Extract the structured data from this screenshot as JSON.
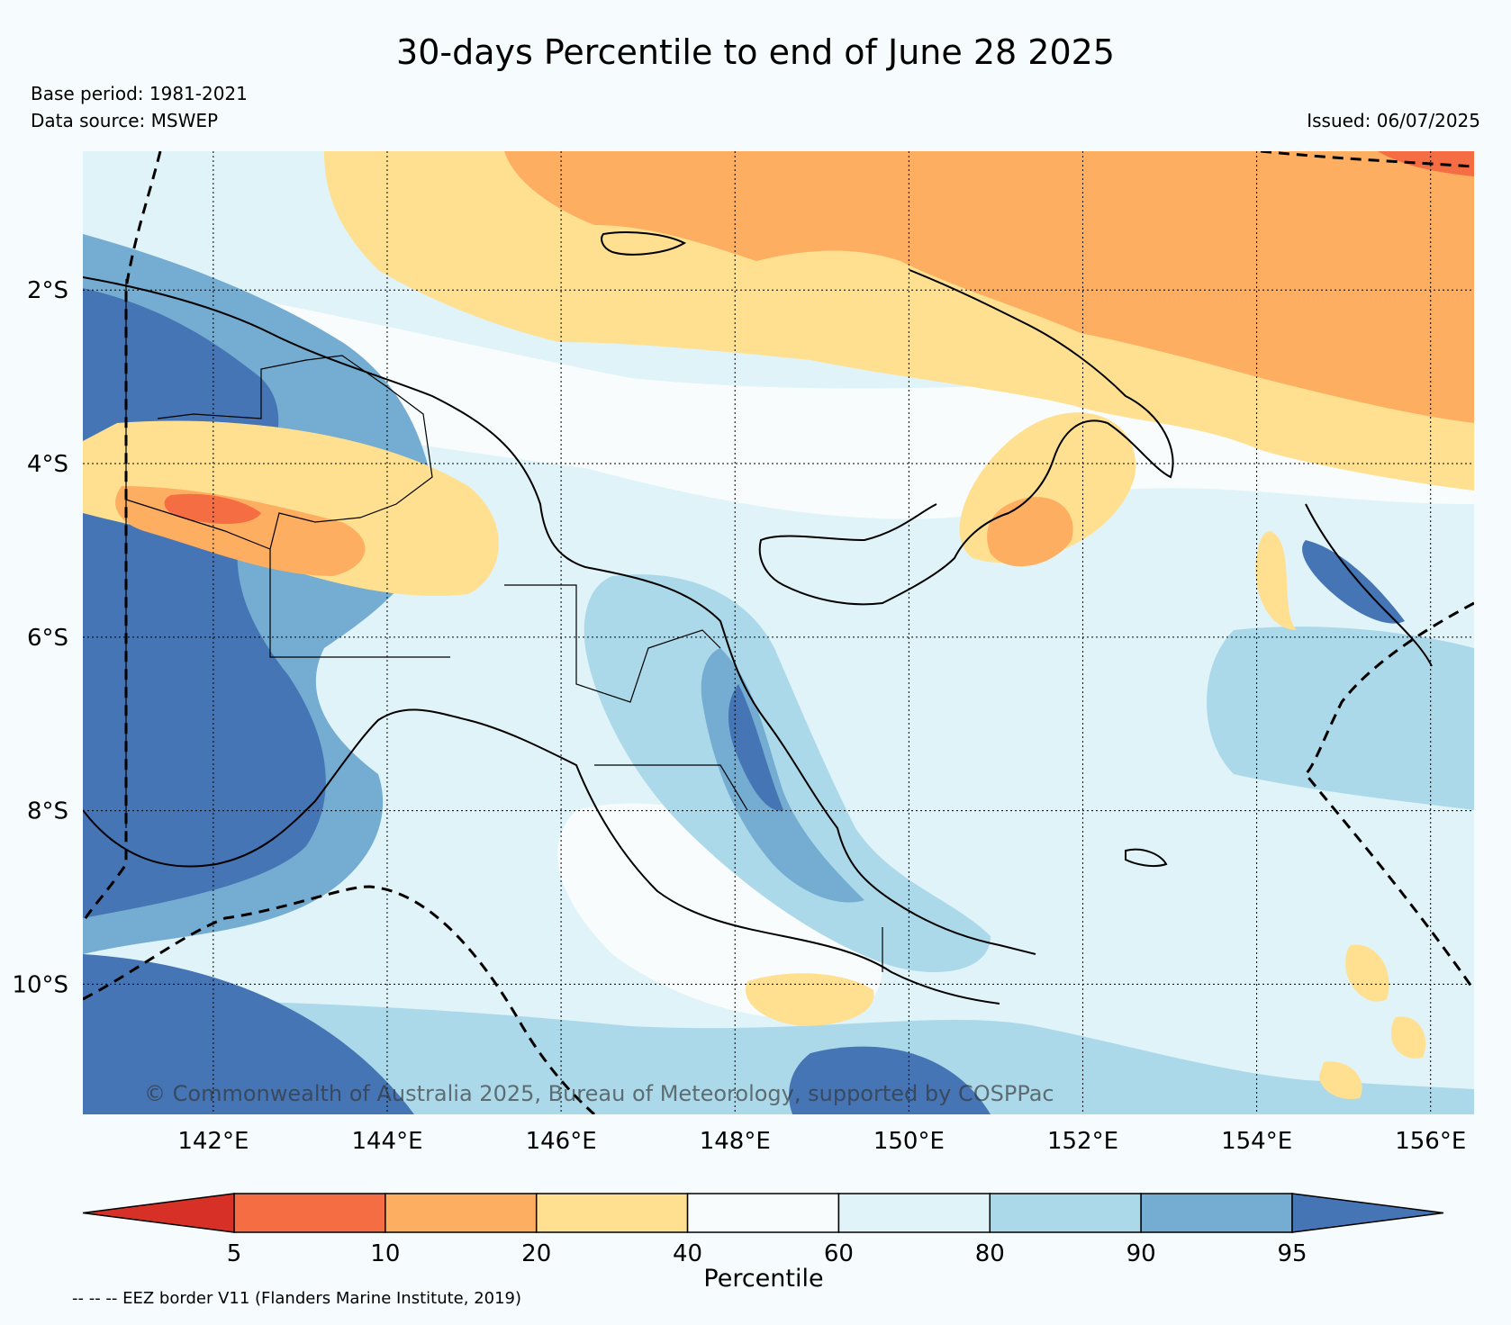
{
  "title": "30-days Percentile to end of June 28 2025",
  "base_period": "Base period: 1981-2021",
  "data_source": "Data source: MSWEP",
  "issued": "Issued: 06/07/2025",
  "credit": "© Commonwealth of Australia 2025, Bureau of Meteorology, supported by COSPPac",
  "footer": "-- -- -- EEZ border V11 (Flanders Marine Institute, 2019)",
  "map": {
    "lon_range": [
      140.5,
      156.5
    ],
    "lat_range": [
      -11.5,
      -0.4
    ],
    "lat_ticks": [
      {
        "value": -2,
        "label": "2°S"
      },
      {
        "value": -4,
        "label": "4°S"
      },
      {
        "value": -6,
        "label": "6°S"
      },
      {
        "value": -8,
        "label": "8°S"
      },
      {
        "value": -10,
        "label": "10°S"
      }
    ],
    "lon_ticks": [
      {
        "value": 142,
        "label": "142°E"
      },
      {
        "value": 144,
        "label": "144°E"
      },
      {
        "value": 146,
        "label": "146°E"
      },
      {
        "value": 148,
        "label": "148°E"
      },
      {
        "value": 150,
        "label": "150°E"
      },
      {
        "value": 152,
        "label": "152°E"
      },
      {
        "value": 154,
        "label": "154°E"
      },
      {
        "value": 156,
        "label": "156°E"
      }
    ],
    "grid": true
  },
  "colorbar": {
    "title": "Percentile",
    "labels": [
      "5",
      "10",
      "20",
      "40",
      "60",
      "80",
      "90",
      "95"
    ],
    "colors": [
      "#d73027",
      "#f46d43",
      "#fdae61",
      "#fee090",
      "#f9fcfd",
      "#e0f3f8",
      "#abd9e9",
      "#74add1",
      "#4575b4"
    ]
  }
}
